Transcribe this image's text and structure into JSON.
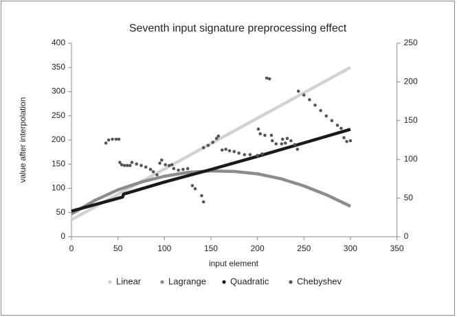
{
  "chart_data": {
    "type": "line",
    "title": "Seventh input signature preprocessing effect",
    "x_label": "input element",
    "y_label": "value after interpolation",
    "xlim": [
      0,
      350
    ],
    "xticks": [
      0,
      50,
      100,
      150,
      200,
      250,
      300,
      350
    ],
    "ylim": [
      0,
      400
    ],
    "yticks": [
      0,
      50,
      100,
      150,
      200,
      250,
      300,
      350,
      400
    ],
    "y2lim": [
      0,
      250
    ],
    "y2ticks": [
      0,
      50,
      100,
      150,
      200,
      250
    ],
    "legend": "bottom",
    "series": [
      {
        "name": "Linear",
        "color": "#d2d2d2",
        "x": [
          0,
          300
        ],
        "values": [
          35,
          350
        ]
      },
      {
        "name": "Lagrange",
        "color": "#8c8c8c",
        "x": [
          0,
          25,
          50,
          75,
          100,
          125,
          150,
          175,
          200,
          225,
          250,
          275,
          300
        ],
        "values": [
          47,
          75,
          97,
          113,
          125,
          133,
          136,
          135,
          130,
          120,
          105,
          86,
          63
        ]
      },
      {
        "name": "Quadratic",
        "color": "#1a1a1a",
        "x": [
          0,
          55,
          56,
          100,
          150,
          200,
          250,
          300
        ],
        "values": [
          53,
          82,
          88,
          113,
          139,
          166,
          194,
          222
        ]
      },
      {
        "name": "Chebyshev",
        "color": "#555555",
        "type": "scatter",
        "axis": "y2",
        "x": [
          37,
          40,
          44,
          48,
          51,
          52,
          54,
          57,
          60,
          63,
          65,
          70,
          75,
          80,
          85,
          88,
          92,
          95,
          97,
          101,
          105,
          108,
          110,
          115,
          120,
          125,
          130,
          133,
          140,
          142,
          142,
          147,
          152,
          156,
          158,
          162,
          166,
          170,
          175,
          180,
          186,
          192,
          200,
          205,
          201,
          203,
          208,
          215,
          210,
          213,
          216,
          220,
          226,
          230,
          227,
          232,
          236,
          240,
          243,
          244,
          250,
          256,
          262,
          268,
          274,
          280,
          286,
          290,
          293,
          296,
          300
        ],
        "values": [
          121,
          125,
          126,
          126,
          126,
          96,
          93,
          92,
          92,
          92,
          96,
          94,
          92,
          90,
          87,
          84,
          80,
          95,
          99,
          93,
          92,
          93,
          88,
          86,
          87,
          88,
          66,
          62,
          53,
          45,
          115,
          118,
          122,
          127,
          130,
          112,
          113,
          111,
          110,
          108,
          106,
          106,
          105,
          107,
          139,
          133,
          131,
          131,
          205,
          204,
          124,
          120,
          120,
          121,
          126,
          127,
          124,
          119,
          113,
          188,
          183,
          177,
          170,
          163,
          156,
          150,
          144,
          140,
          128,
          123,
          124
        ]
      }
    ]
  }
}
